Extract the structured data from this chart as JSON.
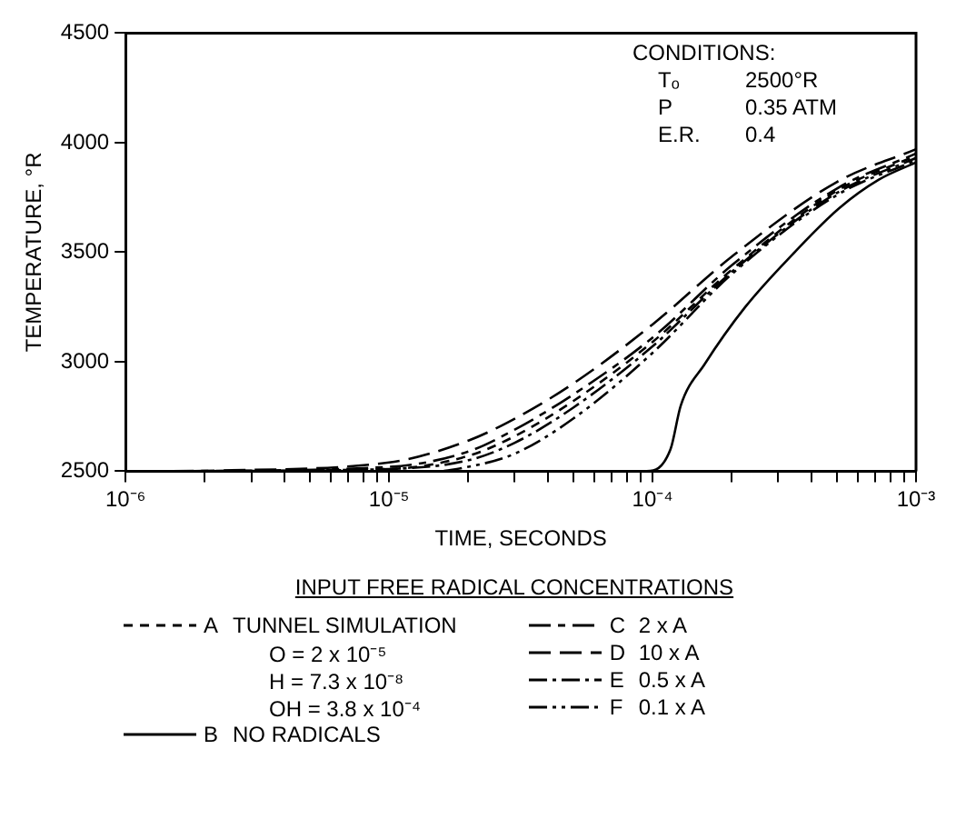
{
  "chart_data": {
    "type": "line",
    "xlabel": "TIME, SECONDS",
    "ylabel": "TEMPERATURE, °R",
    "legend_title": "INPUT FREE RADICAL CONCENTRATIONS",
    "legend": "bottom",
    "log": "x",
    "grid": false,
    "marker": "none",
    "xlim": [
      1e-06,
      0.001
    ],
    "ylim": [
      2500,
      4500
    ],
    "yticks": [
      2500,
      3000,
      3500,
      4000,
      4500
    ],
    "xticks": [
      {
        "value": 1e-06,
        "label": "10⁻⁶"
      },
      {
        "value": 2e-06,
        "label": null
      },
      {
        "value": 3e-06,
        "label": null
      },
      {
        "value": 4e-06,
        "label": null
      },
      {
        "value": 5e-06,
        "label": null
      },
      {
        "value": 6e-06,
        "label": null
      },
      {
        "value": 7e-06,
        "label": null
      },
      {
        "value": 8e-06,
        "label": null
      },
      {
        "value": 9e-06,
        "label": null
      },
      {
        "value": 1e-05,
        "label": "10⁻⁵"
      },
      {
        "value": 2e-05,
        "label": null
      },
      {
        "value": 3e-05,
        "label": null
      },
      {
        "value": 4e-05,
        "label": null
      },
      {
        "value": 5e-05,
        "label": null
      },
      {
        "value": 6e-05,
        "label": null
      },
      {
        "value": 7e-05,
        "label": null
      },
      {
        "value": 8e-05,
        "label": null
      },
      {
        "value": 9e-05,
        "label": null
      },
      {
        "value": 0.0001,
        "label": "10⁻⁴"
      },
      {
        "value": 0.0002,
        "label": null
      },
      {
        "value": 0.0003,
        "label": null
      },
      {
        "value": 0.0004,
        "label": null
      },
      {
        "value": 0.0005,
        "label": null
      },
      {
        "value": 0.0006,
        "label": null
      },
      {
        "value": 0.0007,
        "label": null
      },
      {
        "value": 0.0008,
        "label": null
      },
      {
        "value": 0.0009,
        "label": null
      },
      {
        "value": 0.001,
        "label": "10⁻³"
      }
    ],
    "x": [
      1.2e-06,
      1e-05,
      2e-05,
      3e-05,
      5e-05,
      0.0001,
      0.0002,
      0.0005,
      0.001
    ],
    "annotations": [
      "CONDITIONS:",
      "Tₒ 2500°R",
      "P 0.35 ATM",
      "E.R. 0.4",
      "O = 2 x 10⁻⁵",
      "H = 7.3 x 10⁻⁸",
      "OH = 3.8 x 10⁻⁴"
    ],
    "series": [
      {
        "name": "A TUNNEL SIMULATION",
        "color": "#000000",
        "line_style": "dashed",
        "values": [
          2500,
          2510,
          2570,
          2660,
          2820,
          3090,
          3420,
          3780,
          3940
        ]
      },
      {
        "name": "B NO RADICALS",
        "color": "#000000",
        "line_style": "solid",
        "x": [
          1e-06,
          9.5e-05,
          0.000117,
          0.000128,
          0.000158,
          0.000225,
          0.00034,
          0.00051,
          0.00072,
          0.001
        ],
        "values": [
          2500,
          2500,
          2600,
          2800,
          2990,
          3250,
          3490,
          3700,
          3830,
          3910
        ]
      },
      {
        "name": "C 2 x A",
        "color": "#000000",
        "line_style": "dashed",
        "x": [
          1.5e-06,
          1e-05,
          2e-05,
          3e-05,
          5e-05,
          0.0001,
          0.0002,
          0.0005,
          0.001
        ],
        "values": [
          2500,
          2520,
          2590,
          2690,
          2850,
          3110,
          3440,
          3790,
          3950
        ]
      },
      {
        "name": "D 10 x A",
        "color": "#000000",
        "line_style": "dashed",
        "x": [
          1.8e-06,
          1e-05,
          2e-05,
          3e-05,
          5e-05,
          0.0001,
          0.0002,
          0.0005,
          0.001
        ],
        "values": [
          2500,
          2540,
          2640,
          2740,
          2900,
          3170,
          3480,
          3820,
          3970
        ]
      },
      {
        "name": "E 0.5 x A",
        "color": "#000000",
        "line_style": "dashed",
        "x": [
          2.2e-06,
          1e-05,
          2e-05,
          3e-05,
          5e-05,
          0.0001,
          0.0002,
          0.0005,
          0.001
        ],
        "values": [
          2500,
          2510,
          2550,
          2630,
          2790,
          3070,
          3410,
          3770,
          3930
        ]
      },
      {
        "name": "F 0.1 x A",
        "color": "#000000",
        "line_style": "dashed",
        "x": [
          2.6e-06,
          1.5e-05,
          2e-05,
          3e-05,
          5e-05,
          0.0001,
          0.0002,
          0.0005,
          0.001
        ],
        "values": [
          2500,
          2500,
          2520,
          2580,
          2740,
          3040,
          3400,
          3760,
          3920
        ]
      }
    ]
  }
}
